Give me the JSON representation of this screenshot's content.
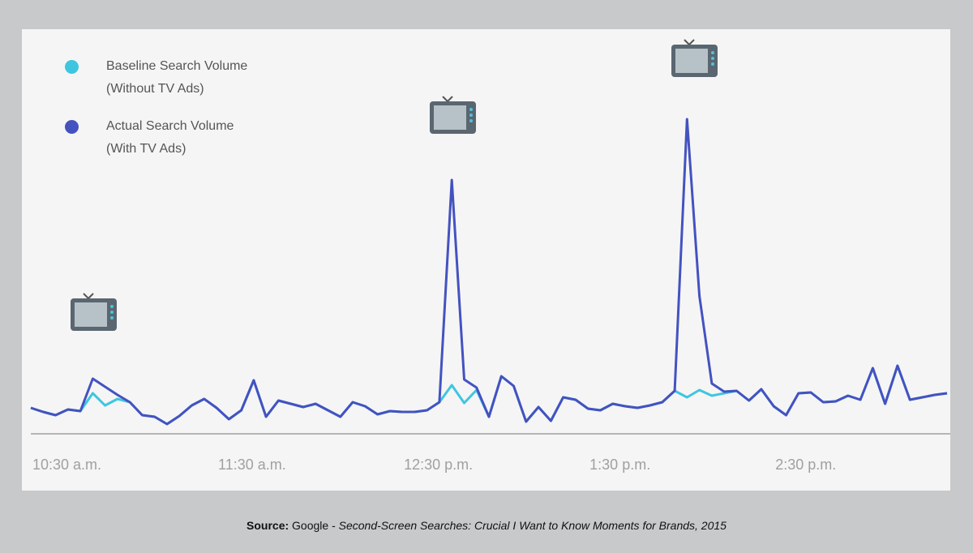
{
  "chart_data": {
    "type": "line",
    "categories": [
      "10:30 a.m.",
      null,
      null,
      null,
      null,
      null,
      null,
      null,
      null,
      null,
      null,
      null,
      null,
      null,
      null,
      "11:30 a.m.",
      null,
      null,
      null,
      null,
      null,
      null,
      null,
      null,
      null,
      null,
      null,
      null,
      null,
      null,
      "12:30 p.m.",
      null,
      null,
      null,
      null,
      null,
      null,
      null,
      null,
      null,
      null,
      null,
      null,
      null,
      null,
      "1:30 p.m.",
      null,
      null,
      null,
      null,
      null,
      null,
      null,
      null,
      null,
      null,
      null,
      null,
      null,
      null,
      "2:30 p.m.",
      null,
      null,
      null,
      null,
      null,
      null,
      null,
      null,
      null,
      null,
      null,
      null,
      null,
      null
    ],
    "ylim": [
      0,
      400
    ],
    "series": [
      {
        "name": "Baseline Search Volume\n(Without TV Ads)",
        "color": "#3ec6e0",
        "values": [
          32,
          27,
          23,
          30,
          28,
          50,
          35,
          43,
          39,
          23,
          21,
          12,
          22,
          35,
          43,
          32,
          18,
          29,
          66,
          21,
          41,
          37,
          33,
          37,
          29,
          21,
          39,
          34,
          24,
          28,
          27,
          27,
          29,
          39,
          60,
          38,
          54,
          21,
          71,
          59,
          15,
          33,
          16,
          45,
          42,
          31,
          29,
          37,
          34,
          32,
          35,
          39,
          53,
          45,
          54,
          47,
          50,
          53,
          41,
          55,
          34,
          23,
          50,
          51,
          39,
          40,
          47,
          42,
          81,
          37,
          84,
          42,
          45,
          48,
          50
        ]
      },
      {
        "name": "Actual Search Volume\n(With TV Ads)",
        "color": "#4452c0",
        "values": [
          32,
          27,
          23,
          30,
          28,
          68,
          58,
          48,
          39,
          23,
          21,
          12,
          22,
          35,
          43,
          32,
          18,
          29,
          66,
          21,
          41,
          37,
          33,
          37,
          29,
          21,
          39,
          34,
          24,
          28,
          27,
          27,
          29,
          39,
          313,
          67,
          57,
          21,
          71,
          59,
          15,
          33,
          16,
          45,
          42,
          31,
          29,
          37,
          34,
          32,
          35,
          39,
          53,
          388,
          170,
          62,
          52,
          53,
          41,
          55,
          34,
          23,
          50,
          51,
          39,
          40,
          47,
          42,
          81,
          37,
          84,
          42,
          45,
          48,
          50
        ]
      }
    ],
    "source": {
      "label": "Source:",
      "publisher": "Google -",
      "title": "Second-Screen Searches: Crucial I Want to Know Moments for Brands, 2015"
    }
  }
}
